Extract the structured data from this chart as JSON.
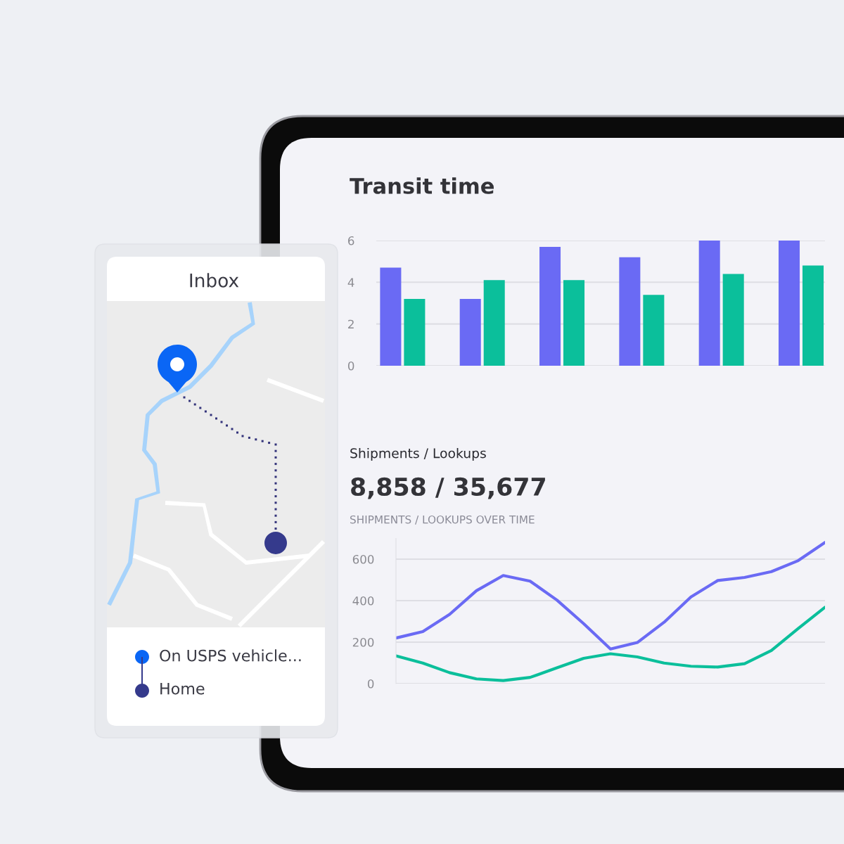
{
  "chart_data": [
    {
      "type": "bar",
      "title": "Transit time",
      "categories": [
        null,
        null,
        null,
        null,
        null,
        null
      ],
      "series": [
        {
          "color": "#6a6af4",
          "values": [
            4.7,
            3.2,
            5.7,
            5.2,
            6.0,
            6.0
          ]
        },
        {
          "color": "#0bbf9b",
          "values": [
            3.2,
            4.1,
            4.1,
            3.4,
            4.4,
            4.8
          ]
        }
      ],
      "ylim": [
        0,
        6
      ],
      "yticks": [
        0,
        2,
        4,
        6
      ],
      "grid": "y",
      "legend": false
    },
    {
      "type": "line",
      "title": "Shipments / Lookups",
      "subtitle": "8,858 / 35,677",
      "annotations": [
        "SHIPMENTS / LOOKUPS OVER TIME"
      ],
      "categories": [
        null,
        null,
        null,
        null,
        null,
        null,
        null,
        null,
        null,
        null,
        null,
        null,
        null,
        null,
        null,
        null,
        null
      ],
      "series": [
        {
          "color": "#6a6af4",
          "values": [
            220,
            251,
            334,
            448,
            521,
            494,
            403,
            289,
            167,
            198,
            296,
            418,
            497,
            512,
            540,
            593,
            681
          ]
        },
        {
          "color": "#0bbf9b",
          "values": [
            134,
            99,
            53,
            23,
            15,
            30,
            76,
            122,
            144,
            129,
            99,
            84,
            80,
            96,
            160,
            266,
            368
          ]
        }
      ],
      "ylim": [
        0,
        700
      ],
      "yticks": [
        0,
        200,
        400,
        600
      ],
      "grid": "y",
      "legend": false,
      "marker": "none",
      "line_style": "solid"
    },
    {
      "type": "other",
      "title": "Inbox",
      "annotations": [
        "On USPS vehicle...",
        "Home"
      ]
    }
  ]
}
